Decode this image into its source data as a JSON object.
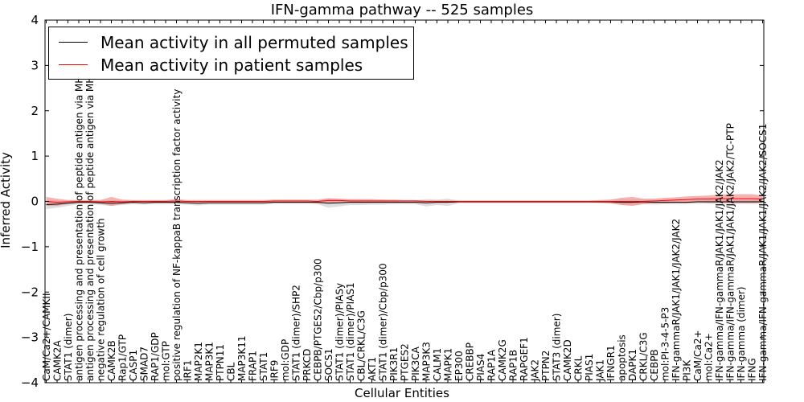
{
  "chart_data": {
    "type": "line",
    "title": "IFN-gamma pathway -- 525 samples",
    "xlabel": "Cellular Entities",
    "ylabel": "Inferred Activity",
    "ylim": [
      -4,
      4
    ],
    "yticks": [
      "−4",
      "−3",
      "−2",
      "−1",
      "0",
      "1",
      "2",
      "3",
      "4"
    ],
    "grid": false,
    "legend_position": "upper-left",
    "categories": [
      "CaM/Ca2+/CAMKII",
      "CAMK2A",
      "STAT1 (dimer)",
      "antigen processing and presentation of peptide antigen via MHC class I",
      "antigen processing and presentation of peptide antigen via MHC class II",
      "negative regulation of cell growth",
      "CAMK2B",
      "Rap1/GTP",
      "CASP1",
      "SMAD7",
      "RAP1/GDP",
      "mol:GTP",
      "positive regulation of NF-kappaB transcription factor activity",
      "IRF1",
      "MAP2K1",
      "MAP3K1",
      "PTPN11",
      "CBL",
      "MAP3K11",
      "FRAP1",
      "STAT1",
      "IRF9",
      "mol:GDP",
      "STAT1 (dimer)/SHP2",
      "PRKCD",
      "CEBPB/PTGES2/Cbp/p300",
      "SOCS1",
      "STAT1 (dimer)/PIASy",
      "STAT1 (dimer)/PIAS1",
      "CBL/CRKL/C3G",
      "AKT1",
      "STAT1 (dimer)/Cbp/p300",
      "PIK3R1",
      "PTGES2",
      "PIK3CA",
      "MAP3K3",
      "CALM1",
      "MAPK1",
      "EP300",
      "CREBBP",
      "PIAS4",
      "RAP1A",
      "CAMK2G",
      "RAP1B",
      "RAPGEF1",
      "JAK2",
      "PTPN2",
      "STAT3 (dimer)",
      "CAMK2D",
      "CRKL",
      "PIAS1",
      "JAK1",
      "IFNGR1",
      "apoptosis",
      "DAPK1",
      "CRKL/C3G",
      "CEBPB",
      "mol:PI-3-4-5-P3",
      "IFN-gammaR/JAK1/JAK1/JAK2/JAK2",
      "PI3K",
      "CaM/Ca2+",
      "mol:Ca2+",
      "IFN-gamma/IFN-gammaR/JAK1/JAK1/JAK2/JAK2",
      "IFN-gamma/IFN-gammaR/JAK1/JAK1/JAK2/JAK2/TC-PTP",
      "IFN-gamma (dimer)",
      "IFNG",
      "IFN-gamma/IFN-gammaR/JAK1/JAK1/JAK2/JAK2/SOCS1"
    ],
    "series": [
      {
        "name": "Mean activity in all permuted samples",
        "color": "#000000",
        "band_color": "#d3d3d3",
        "values": [
          -0.07,
          -0.06,
          -0.04,
          -0.02,
          -0.02,
          -0.03,
          -0.04,
          -0.03,
          -0.02,
          -0.03,
          -0.02,
          -0.02,
          -0.02,
          -0.03,
          -0.04,
          -0.03,
          -0.03,
          -0.03,
          -0.03,
          -0.03,
          -0.03,
          -0.02,
          -0.02,
          -0.02,
          -0.02,
          -0.02,
          -0.04,
          -0.03,
          -0.02,
          -0.02,
          -0.02,
          -0.02,
          -0.02,
          -0.02,
          -0.02,
          -0.03,
          -0.02,
          -0.02,
          -0.01,
          -0.01,
          -0.01,
          -0.01,
          -0.01,
          -0.01,
          -0.01,
          -0.01,
          -0.01,
          -0.01,
          -0.01,
          -0.01,
          -0.01,
          -0.01,
          -0.01,
          -0.02,
          -0.02,
          -0.01,
          -0.02,
          -0.02,
          -0.02,
          -0.02,
          -0.01,
          -0.01,
          -0.01,
          -0.01,
          -0.01,
          -0.01,
          -0.01
        ],
        "band": [
          0.1,
          0.08,
          0.06,
          0.04,
          0.04,
          0.05,
          0.06,
          0.05,
          0.04,
          0.04,
          0.04,
          0.04,
          0.04,
          0.04,
          0.05,
          0.04,
          0.04,
          0.04,
          0.04,
          0.04,
          0.04,
          0.03,
          0.03,
          0.03,
          0.03,
          0.04,
          0.1,
          0.08,
          0.06,
          0.06,
          0.05,
          0.05,
          0.04,
          0.04,
          0.04,
          0.08,
          0.06,
          0.08,
          0.03,
          0.03,
          0.03,
          0.03,
          0.03,
          0.03,
          0.03,
          0.03,
          0.03,
          0.03,
          0.03,
          0.03,
          0.03,
          0.03,
          0.04,
          0.06,
          0.06,
          0.05,
          0.05,
          0.04,
          0.04,
          0.04,
          0.04,
          0.04,
          0.04,
          0.04,
          0.04,
          0.04,
          0.04
        ]
      },
      {
        "name": "Mean activity in patient samples",
        "color": "#ff0000",
        "band_color": "#f08080",
        "values": [
          0.0,
          -0.02,
          -0.01,
          0.0,
          0.0,
          -0.01,
          0.0,
          -0.01,
          0.0,
          0.0,
          0.0,
          0.0,
          0.01,
          0.0,
          0.0,
          0.0,
          0.0,
          0.0,
          0.0,
          0.0,
          0.0,
          0.01,
          0.01,
          0.01,
          0.01,
          0.0,
          0.02,
          0.02,
          0.01,
          0.01,
          0.01,
          0.01,
          0.01,
          0.01,
          0.01,
          0.0,
          0.0,
          0.0,
          0.0,
          0.0,
          0.0,
          0.0,
          0.0,
          0.0,
          0.0,
          0.0,
          0.0,
          0.0,
          0.0,
          0.0,
          0.0,
          0.0,
          0.0,
          0.0,
          0.0,
          0.0,
          0.01,
          0.02,
          0.03,
          0.04,
          0.05,
          0.05,
          0.06,
          0.06,
          0.06,
          0.06,
          0.05
        ],
        "band": [
          0.1,
          0.08,
          0.04,
          0.03,
          0.03,
          0.04,
          0.1,
          0.05,
          0.03,
          0.03,
          0.03,
          0.03,
          0.04,
          0.03,
          0.03,
          0.03,
          0.03,
          0.03,
          0.03,
          0.03,
          0.03,
          0.03,
          0.03,
          0.03,
          0.03,
          0.04,
          0.05,
          0.04,
          0.04,
          0.04,
          0.04,
          0.03,
          0.03,
          0.02,
          0.02,
          0.02,
          0.02,
          0.02,
          0.02,
          0.02,
          0.02,
          0.02,
          0.02,
          0.02,
          0.02,
          0.02,
          0.02,
          0.02,
          0.02,
          0.02,
          0.02,
          0.03,
          0.04,
          0.08,
          0.1,
          0.06,
          0.05,
          0.06,
          0.06,
          0.07,
          0.07,
          0.08,
          0.09,
          0.1,
          0.1,
          0.1,
          0.08
        ]
      }
    ]
  }
}
